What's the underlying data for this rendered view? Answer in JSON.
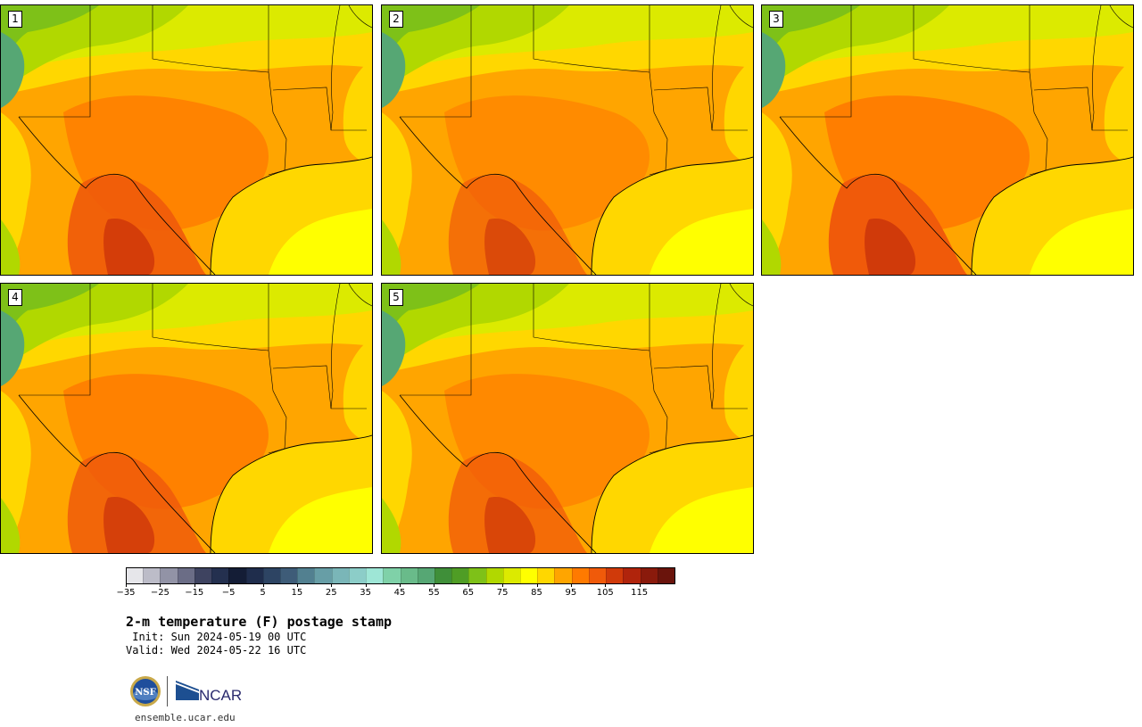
{
  "panels": [
    {
      "label": "1"
    },
    {
      "label": "2"
    },
    {
      "label": "3"
    },
    {
      "label": "4"
    },
    {
      "label": "5"
    }
  ],
  "colorbar": {
    "colors": [
      "#e6e6ea",
      "#bcbcc8",
      "#9293a6",
      "#6b6d86",
      "#3e4360",
      "#24304f",
      "#141d36",
      "#1f2d4c",
      "#2d4463",
      "#3e5c78",
      "#528090",
      "#679ea6",
      "#7ab6b8",
      "#8ccdc8",
      "#9ee6d6",
      "#7fd1a8",
      "#69bb8a",
      "#56a774",
      "#3f8f39",
      "#4f9d25",
      "#7ec118",
      "#b1d800",
      "#dcea00",
      "#ffff00",
      "#ffd700",
      "#ffa500",
      "#ff7a00",
      "#f05a0a",
      "#d03a0a",
      "#b0240c",
      "#8a1a0c",
      "#6a140c"
    ],
    "tick_labels": [
      "−35",
      "−25",
      "−15",
      "−5",
      "5",
      "15",
      "25",
      "35",
      "45",
      "55",
      "65",
      "75",
      "85",
      "95",
      "105",
      "115"
    ]
  },
  "title": "2-m temperature (F) postage stamp",
  "init": " Init: Sun 2024-05-19 00 UTC",
  "valid": "Valid: Wed 2024-05-22 16 UTC",
  "logos": {
    "nsf_text": "NSF",
    "ncar_text": "NCAR"
  },
  "url": "ensemble.ucar.edu"
}
